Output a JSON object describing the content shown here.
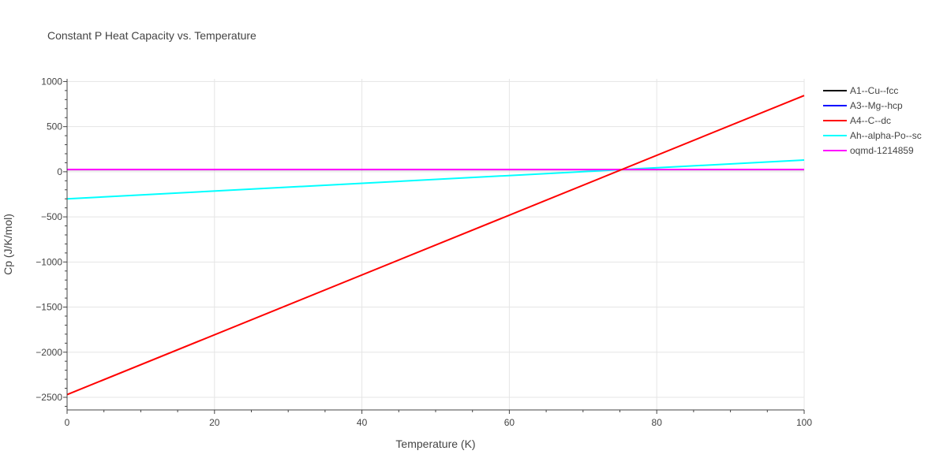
{
  "chart_data": {
    "type": "line",
    "title": "Constant P Heat Capacity vs. Temperature",
    "xlabel": "Temperature (K)",
    "ylabel": "Cp (J/K/mol)",
    "xlim": [
      0,
      100
    ],
    "ylim": [
      -2640,
      1030
    ],
    "x_ticks": [
      0,
      20,
      40,
      60,
      80,
      100
    ],
    "x_tick_labels": [
      "0",
      "20",
      "40",
      "60",
      "80",
      "100"
    ],
    "y_ticks": [
      -2500,
      -2000,
      -1500,
      -1000,
      -500,
      0,
      500,
      1000
    ],
    "y_tick_labels": [
      "−2500",
      "−2000",
      "−1500",
      "−1000",
      "−500",
      "0",
      "500",
      "1000"
    ],
    "grid": true,
    "legend_position": "top-right",
    "series": [
      {
        "name": "A1--Cu--fcc",
        "color": "#000000",
        "x": [
          0,
          100
        ],
        "y": [
          24.5,
          24.5
        ]
      },
      {
        "name": "A3--Mg--hcp",
        "color": "#0000ff",
        "x": [
          0,
          100
        ],
        "y": [
          24.8,
          24.8
        ]
      },
      {
        "name": "A4--C--dc",
        "color": "#ff0000",
        "x": [
          0,
          100
        ],
        "y": [
          -2470,
          845
        ]
      },
      {
        "name": "Ah--alpha-Po--sc",
        "color": "#00ffff",
        "x": [
          0,
          100
        ],
        "y": [
          -300,
          130
        ]
      },
      {
        "name": "oqmd-1214859",
        "color": "#ff00ff",
        "x": [
          0,
          100
        ],
        "y": [
          25,
          25
        ]
      }
    ]
  }
}
